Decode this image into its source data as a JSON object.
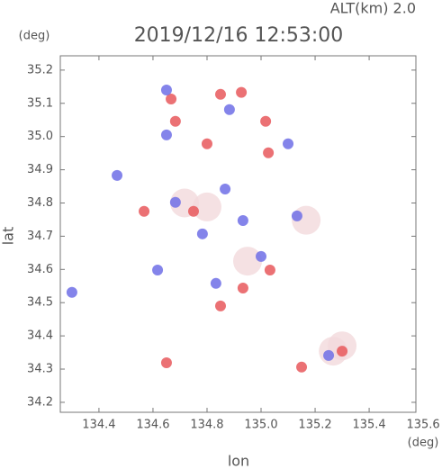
{
  "chart_data": {
    "type": "scatter",
    "title": "2019/12/16 12:53:00",
    "subtitle": "ALT(km) 2.0",
    "x_label": "lon",
    "y_label": "lat",
    "x_unit": "(deg)",
    "y_unit": "(deg)",
    "xlim": [
      134.257,
      135.573
    ],
    "ylim": [
      34.17,
      35.243
    ],
    "xticks": [
      134.4,
      134.6,
      134.8,
      {
        "value": 135.0,
        "label": "135.0"
      },
      135.2,
      135.4,
      135.6
    ],
    "yticks": [
      34.2,
      34.3,
      34.4,
      34.5,
      34.6,
      34.7,
      34.8,
      34.9,
      {
        "value": 35.0,
        "label": "35.0"
      },
      35.1,
      35.2
    ],
    "series": [
      {
        "color": "#f2d9dc",
        "x": [
          134.8,
          135.267,
          135.167,
          134.95,
          134.717,
          135.3
        ],
        "y": [
          34.788,
          34.354,
          34.748,
          34.625,
          34.8,
          34.37
        ]
      },
      {
        "color": "#e8585c",
        "x": [
          134.683,
          134.85,
          134.927,
          135.017,
          134.8,
          135.027,
          134.75,
          134.567,
          134.85,
          134.933,
          134.65,
          135.15,
          135.3,
          134.667,
          135.033
        ],
        "y": [
          35.046,
          35.127,
          35.133,
          35.046,
          34.978,
          34.951,
          34.775,
          34.775,
          34.49,
          34.544,
          34.319,
          34.306,
          34.354,
          35.113,
          34.598
        ]
      },
      {
        "color": "#6f6fe6",
        "x": [
          134.883,
          134.65,
          134.867,
          134.683,
          135.25,
          134.3,
          135.133,
          135.0,
          134.833,
          134.617,
          134.65,
          135.1,
          134.467,
          134.933,
          134.783
        ],
        "y": [
          35.081,
          35.005,
          34.842,
          34.802,
          34.341,
          34.531,
          34.761,
          34.639,
          34.558,
          34.598,
          35.14,
          34.978,
          34.883,
          34.747,
          34.707
        ]
      }
    ]
  }
}
